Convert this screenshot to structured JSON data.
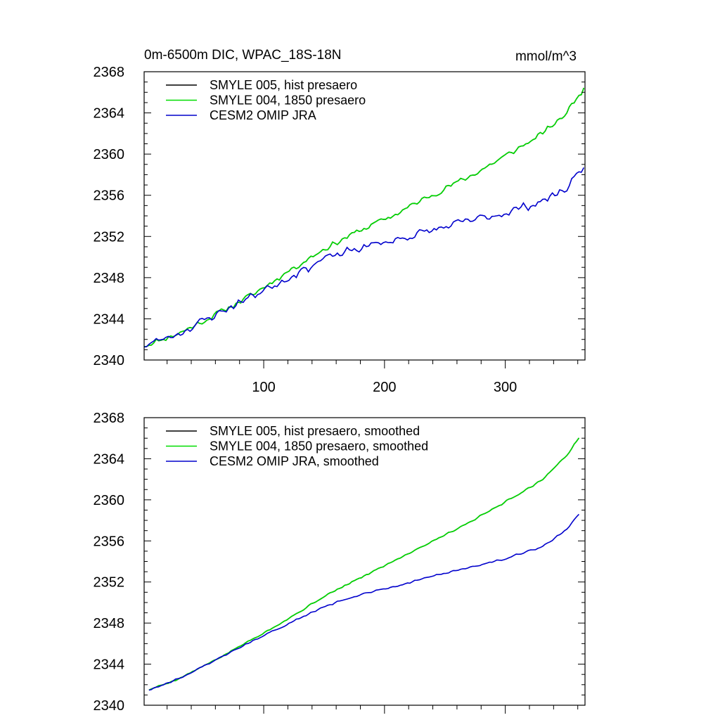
{
  "chart_data": [
    {
      "type": "line",
      "title_left": "0m-6500m DIC, WPAC_18S-18N",
      "title_right": "mmol/m^3",
      "xlabel": "",
      "ylabel": "",
      "xlim": [
        1,
        366
      ],
      "ylim": [
        2340,
        2368
      ],
      "yticks": [
        2340,
        2344,
        2348,
        2352,
        2356,
        2360,
        2364,
        2368
      ],
      "yticklabels": [
        "2340",
        "2344",
        "2348",
        "2352",
        "2356",
        "2360",
        "2364",
        "2368"
      ],
      "xticks": [
        100,
        200,
        300
      ],
      "xticklabels": [
        "100",
        "200",
        "300"
      ],
      "legend_position": "top-left",
      "series": [
        {
          "name": "SMYLE 005, hist presaero",
          "color": "#000000",
          "anchor_x": [
            1,
            30,
            60,
            90,
            120,
            150,
            180,
            210,
            240,
            270,
            300,
            330,
            350,
            366
          ],
          "anchor_y": [
            2341.4,
            2342.6,
            2344.4,
            2346.3,
            2348.6,
            2350.8,
            2352.6,
            2354.2,
            2356.1,
            2357.8,
            2359.8,
            2361.9,
            2363.9,
            2366.6
          ],
          "noise": 0.35,
          "seed": 11
        },
        {
          "name": "SMYLE 004, 1850 presaero",
          "color": "#00dd00",
          "anchor_x": [
            1,
            30,
            60,
            90,
            120,
            150,
            180,
            210,
            240,
            270,
            300,
            330,
            350,
            366
          ],
          "anchor_y": [
            2341.4,
            2342.6,
            2344.4,
            2346.3,
            2348.6,
            2350.8,
            2352.6,
            2354.2,
            2356.1,
            2357.8,
            2359.8,
            2361.9,
            2363.9,
            2366.6
          ],
          "noise": 0.35,
          "seed": 11
        },
        {
          "name": "CESM2 OMIP JRA",
          "color": "#0000cc",
          "anchor_x": [
            1,
            30,
            60,
            90,
            120,
            150,
            180,
            210,
            240,
            270,
            300,
            330,
            350,
            366
          ],
          "anchor_y": [
            2341.4,
            2342.6,
            2344.4,
            2346.2,
            2348.0,
            2349.8,
            2350.9,
            2351.7,
            2352.6,
            2353.5,
            2354.3,
            2355.4,
            2356.6,
            2359.1
          ],
          "noise": 0.5,
          "seed": 23
        }
      ]
    },
    {
      "type": "line",
      "title_left": "",
      "title_right": "",
      "xlabel": "",
      "ylabel": "",
      "xlim": [
        1,
        366
      ],
      "ylim": [
        2340,
        2368
      ],
      "yticks": [
        2340,
        2344,
        2348,
        2352,
        2356,
        2360,
        2364,
        2368
      ],
      "yticklabels": [
        "2340",
        "2344",
        "2348",
        "2352",
        "2356",
        "2360",
        "2364",
        "2368"
      ],
      "xticks": [
        100,
        200,
        300
      ],
      "xticklabels": [],
      "legend_position": "top-left",
      "series": [
        {
          "name": "SMYLE 005, hist presaero, smoothed",
          "color": "#000000",
          "anchor_x": [
            5,
            30,
            60,
            90,
            120,
            150,
            180,
            210,
            240,
            270,
            300,
            330,
            350,
            362
          ],
          "anchor_y": [
            2341.5,
            2342.6,
            2344.4,
            2346.4,
            2348.4,
            2350.6,
            2352.4,
            2354.2,
            2356.0,
            2357.8,
            2359.8,
            2361.9,
            2364.2,
            2366.2
          ],
          "noise": 0.1,
          "seed": 5
        },
        {
          "name": "SMYLE 004, 1850 presaero, smoothed",
          "color": "#00dd00",
          "anchor_x": [
            5,
            30,
            60,
            90,
            120,
            150,
            180,
            210,
            240,
            270,
            300,
            330,
            350,
            362
          ],
          "anchor_y": [
            2341.5,
            2342.6,
            2344.4,
            2346.4,
            2348.4,
            2350.6,
            2352.4,
            2354.2,
            2356.0,
            2357.8,
            2359.8,
            2361.9,
            2364.2,
            2366.2
          ],
          "noise": 0.1,
          "seed": 5
        },
        {
          "name": "CESM2 OMIP JRA, smoothed",
          "color": "#0000cc",
          "anchor_x": [
            5,
            30,
            60,
            90,
            120,
            150,
            180,
            210,
            240,
            270,
            300,
            330,
            350,
            362
          ],
          "anchor_y": [
            2341.5,
            2342.6,
            2344.4,
            2346.2,
            2347.9,
            2349.6,
            2350.8,
            2351.6,
            2352.6,
            2353.4,
            2354.3,
            2355.4,
            2357.0,
            2358.8
          ],
          "noise": 0.1,
          "seed": 9
        }
      ]
    }
  ]
}
